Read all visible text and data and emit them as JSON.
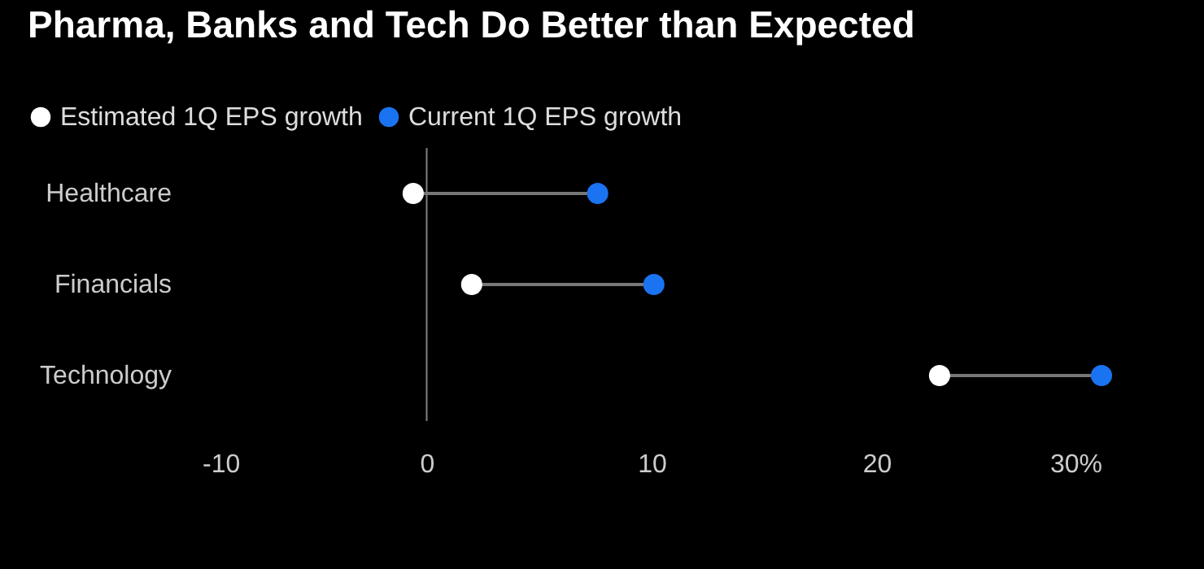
{
  "chart_data": {
    "type": "scatter",
    "orientation": "horizontal",
    "title": "Pharma, Banks and Tech Do Better than Expected",
    "categories": [
      "Healthcare",
      "Financials",
      "Technology"
    ],
    "series": [
      {
        "name": "Estimated 1Q EPS growth",
        "color": "#ffffff",
        "values": [
          -0.6,
          2.0,
          22.8
        ]
      },
      {
        "name": "Current 1Q EPS growth",
        "color": "#1a73f0",
        "values": [
          7.6,
          10.1,
          30.0
        ]
      }
    ],
    "xlim": [
      -10,
      30
    ],
    "xticks": [
      -10,
      0,
      10,
      20,
      {
        "value": 30,
        "label": "30%"
      }
    ],
    "ref_lines": [
      {
        "axis": "x",
        "value": 0,
        "color": "#808080"
      }
    ],
    "marker": "circle",
    "legend": "top left",
    "grid": false
  }
}
